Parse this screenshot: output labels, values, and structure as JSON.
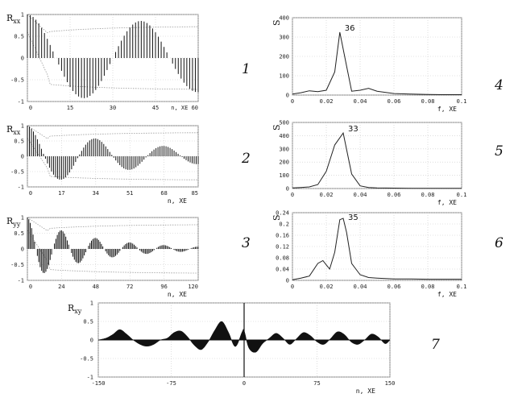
{
  "panel_numbers": [
    "1",
    "2",
    "3",
    "4",
    "5",
    "6",
    "7"
  ],
  "chart_data": [
    {
      "type": "bar",
      "ylabel": "Rxx",
      "xlabel": "n, ХЕ",
      "xlim": [
        0,
        60
      ],
      "ylim": [
        -1,
        1
      ],
      "xticks": [
        "0",
        "15",
        "30",
        "45",
        "n, ХЕ 60"
      ],
      "yticks": [
        "1",
        "0.5",
        "0",
        "-0.5",
        "-1"
      ],
      "damping": 0.004,
      "period": 40,
      "env_level": 0.55,
      "grid": true
    },
    {
      "type": "bar",
      "ylabel": "Rxx",
      "xlabel": "n, ХЕ",
      "xlim": [
        0,
        85
      ],
      "ylim": [
        -1,
        1
      ],
      "xticks": [
        "0",
        "17",
        "34",
        "51",
        "68",
        "85"
      ],
      "yticks": [
        "1",
        "0.5",
        "0",
        "-0.5",
        "-1"
      ],
      "damping": 0.016,
      "period": 34,
      "env_level": 0.6,
      "grid": true
    },
    {
      "type": "bar",
      "ylabel": "Ryy",
      "xlabel": "n, ХЕ",
      "xlim": [
        0,
        120
      ],
      "ylim": [
        -1,
        1
      ],
      "xticks": [
        "0",
        "24",
        "48",
        "72",
        "96",
        "120"
      ],
      "yticks": [
        "1",
        "0.5",
        "0",
        "-0.5",
        "-1"
      ],
      "damping": 0.022,
      "period": 24,
      "env_level": 0.6,
      "grid": true
    },
    {
      "type": "line",
      "ylabel": "S",
      "xlabel": "f, ХЕ",
      "annotation": "36",
      "xlim": [
        0,
        0.1
      ],
      "ylim": [
        0,
        400
      ],
      "xticks": [
        "0",
        "0.02",
        "0.04",
        "0.06",
        "0.08",
        "0.1"
      ],
      "yticks": [
        "400",
        "300",
        "200",
        "100",
        "0"
      ],
      "x": [
        0,
        0.005,
        0.01,
        0.015,
        0.02,
        0.025,
        0.028,
        0.032,
        0.035,
        0.04,
        0.045,
        0.05,
        0.06,
        0.07,
        0.08,
        0.09,
        0.1
      ],
      "y": [
        5,
        12,
        22,
        18,
        25,
        120,
        325,
        150,
        20,
        25,
        35,
        20,
        8,
        5,
        3,
        2,
        2
      ],
      "grid": true
    },
    {
      "type": "line",
      "ylabel": "S",
      "xlabel": "f, ХЕ",
      "annotation": "33",
      "xlim": [
        0,
        0.1
      ],
      "ylim": [
        0,
        500
      ],
      "xticks": [
        "0",
        "0.02",
        "0.04",
        "0.06",
        "0.08",
        "0.1"
      ],
      "yticks": [
        "500",
        "400",
        "300",
        "200",
        "100",
        "0"
      ],
      "x": [
        0,
        0.005,
        0.01,
        0.015,
        0.02,
        0.025,
        0.03,
        0.035,
        0.04,
        0.045,
        0.05,
        0.06,
        0.07,
        0.08,
        0.09,
        0.1
      ],
      "y": [
        5,
        8,
        12,
        30,
        130,
        330,
        420,
        110,
        20,
        8,
        5,
        3,
        2,
        2,
        2,
        2
      ],
      "grid": true
    },
    {
      "type": "line",
      "ylabel": "S",
      "xlabel": "f, ХЕ",
      "annotation": "35",
      "xlim": [
        0,
        0.1
      ],
      "ylim": [
        0,
        0.24
      ],
      "xticks": [
        "0",
        "0.02",
        "0.04",
        "0.06",
        "0.08",
        "0.1"
      ],
      "yticks": [
        "0.24",
        "0.2",
        "0.16",
        "0.12",
        "0.08",
        "0.04",
        "0"
      ],
      "x": [
        0,
        0.005,
        0.01,
        0.015,
        0.018,
        0.02,
        0.022,
        0.025,
        0.028,
        0.03,
        0.032,
        0.035,
        0.04,
        0.045,
        0.05,
        0.06,
        0.07,
        0.08,
        0.09,
        0.1
      ],
      "y": [
        0.002,
        0.008,
        0.015,
        0.06,
        0.07,
        0.055,
        0.04,
        0.1,
        0.215,
        0.22,
        0.17,
        0.06,
        0.02,
        0.01,
        0.008,
        0.005,
        0.005,
        0.004,
        0.004,
        0.004
      ],
      "grid": true
    },
    {
      "type": "area",
      "ylabel": "Rxy",
      "xlabel": "n, ХЕ",
      "xlim": [
        -150,
        150
      ],
      "ylim": [
        -1,
        1
      ],
      "xticks": [
        "-150",
        "-75",
        "0",
        "75",
        "150"
      ],
      "yticks": [
        "1",
        "0.5",
        "0",
        "-0.5",
        "-1"
      ],
      "x": [
        -150,
        -142,
        -135,
        -128,
        -121,
        -114,
        -107,
        -100,
        -93,
        -86,
        -79,
        -72,
        -65,
        -58,
        -51,
        -44,
        -37,
        -30,
        -23,
        -16,
        -9,
        -2,
        0,
        5,
        12,
        19,
        26,
        33,
        40,
        47,
        54,
        61,
        68,
        75,
        82,
        89,
        96,
        103,
        110,
        117,
        124,
        131,
        138,
        145,
        150
      ],
      "y": [
        0,
        0.05,
        0.15,
        0.28,
        0.16,
        0.0,
        -0.12,
        -0.17,
        -0.12,
        0.0,
        0.05,
        0.2,
        0.24,
        0.08,
        -0.15,
        -0.26,
        -0.05,
        0.27,
        0.5,
        0.2,
        -0.18,
        0.22,
        0.25,
        -0.22,
        -0.33,
        -0.1,
        0.05,
        0.18,
        0.05,
        -0.12,
        0.04,
        0.2,
        0.12,
        -0.05,
        -0.12,
        0.04,
        0.22,
        0.15,
        -0.05,
        -0.12,
        0.0,
        0.16,
        0.08,
        -0.1,
        0.0
      ],
      "grid": true
    }
  ]
}
